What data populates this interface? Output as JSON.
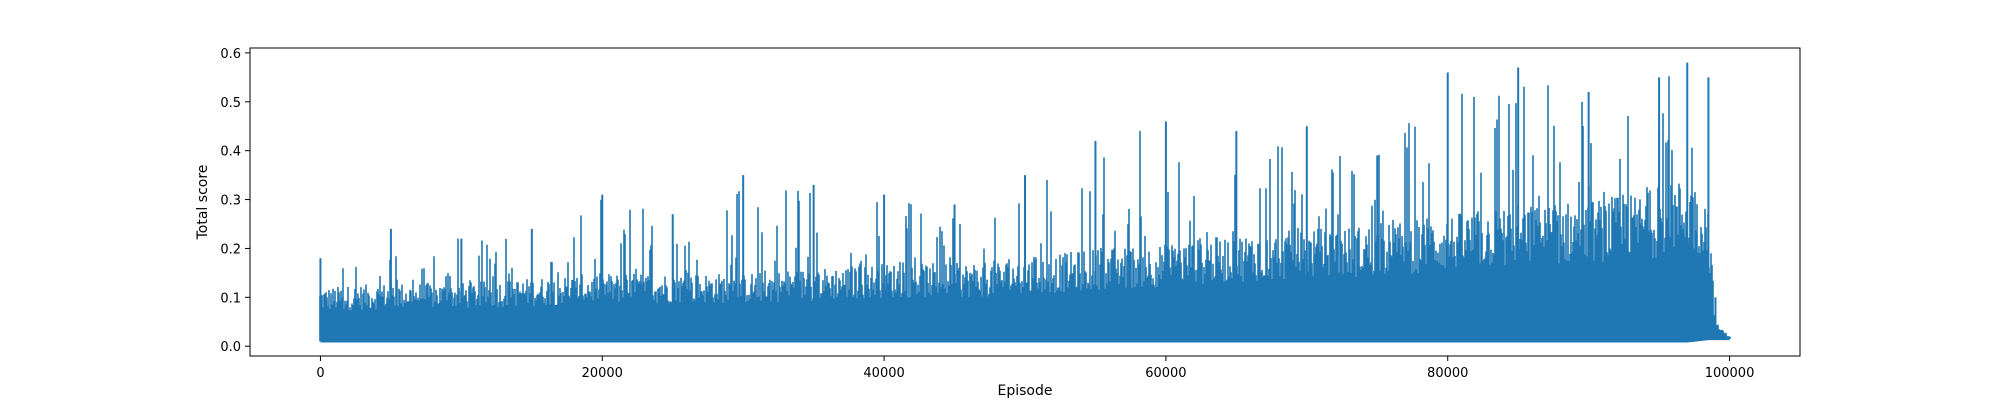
{
  "chart_data": {
    "type": "line",
    "title": "",
    "xlabel": "Episode",
    "ylabel": "Total score",
    "xlim": [
      -5000,
      105000
    ],
    "ylim": [
      -0.02,
      0.61
    ],
    "xticks": [
      0,
      20000,
      40000,
      60000,
      80000,
      100000
    ],
    "xtick_labels": [
      "0",
      "20000",
      "40000",
      "60000",
      "80000",
      "100000"
    ],
    "yticks": [
      0.0,
      0.1,
      0.2,
      0.3,
      0.4,
      0.5,
      0.6
    ],
    "ytick_labels": [
      "0.0",
      "0.1",
      "0.2",
      "0.3",
      "0.4",
      "0.5",
      "0.6"
    ],
    "grid": false,
    "legend": "none",
    "color": "#1f77b4",
    "series": [
      {
        "x": [
          0,
          5000,
          10000,
          15000,
          20000,
          25000,
          30000,
          35000,
          40000,
          45000,
          50000,
          55000,
          60000,
          65000,
          70000,
          75000,
          80000,
          85000,
          90000,
          95000,
          97000,
          98500,
          99000,
          100000
        ],
        "y_baseline": [
          0.01,
          0.01,
          0.01,
          0.01,
          0.01,
          0.01,
          0.01,
          0.01,
          0.01,
          0.01,
          0.01,
          0.01,
          0.01,
          0.01,
          0.01,
          0.01,
          0.01,
          0.01,
          0.01,
          0.01,
          0.01,
          0.015,
          0.015,
          0.015
        ],
        "y_typical_high": [
          0.12,
          0.13,
          0.13,
          0.14,
          0.15,
          0.15,
          0.15,
          0.16,
          0.17,
          0.17,
          0.18,
          0.2,
          0.21,
          0.23,
          0.24,
          0.25,
          0.27,
          0.29,
          0.3,
          0.32,
          0.35,
          0.3,
          0.05,
          0.02
        ],
        "y_max": [
          0.18,
          0.24,
          0.22,
          0.24,
          0.31,
          0.27,
          0.35,
          0.33,
          0.31,
          0.29,
          0.35,
          0.42,
          0.46,
          0.44,
          0.45,
          0.39,
          0.56,
          0.57,
          0.52,
          0.55,
          0.58,
          0.55,
          0.1,
          0.02
        ]
      }
    ]
  }
}
